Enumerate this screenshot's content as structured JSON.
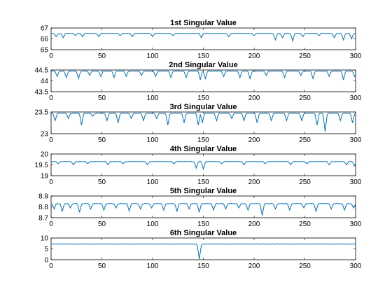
{
  "figure": {
    "background": "#ffffff",
    "line_color": "#0072bd"
  },
  "chart_data": [
    {
      "type": "line",
      "title": "1st Singular Value",
      "xlim": [
        0,
        300
      ],
      "ylim": [
        65,
        67
      ],
      "xticks": [
        0,
        50,
        100,
        150,
        200,
        250,
        300
      ],
      "yticks": [
        65,
        66,
        67
      ],
      "grid": false,
      "baseline": 66.5,
      "dips": [
        [
          5,
          66.2
        ],
        [
          12,
          66.1
        ],
        [
          24,
          66.3
        ],
        [
          31,
          66.2
        ],
        [
          47,
          66.2
        ],
        [
          68,
          66.3
        ],
        [
          80,
          66.2
        ],
        [
          100,
          66.2
        ],
        [
          120,
          66.3
        ],
        [
          148,
          66.1
        ],
        [
          175,
          66.2
        ],
        [
          200,
          66.3
        ],
        [
          221,
          65.9
        ],
        [
          228,
          66.1
        ],
        [
          238,
          65.8
        ],
        [
          248,
          66.2
        ],
        [
          264,
          66.3
        ],
        [
          279,
          66.1
        ],
        [
          288,
          65.9
        ],
        [
          296,
          66.0
        ]
      ]
    },
    {
      "type": "line",
      "title": "2nd Singular Value",
      "xlim": [
        0,
        300
      ],
      "ylim": [
        43.5,
        44.5
      ],
      "xticks": [
        0,
        50,
        100,
        150,
        200,
        250,
        300
      ],
      "yticks": [
        43.5,
        44,
        44.5
      ],
      "grid": false,
      "baseline": 44.45,
      "dips": [
        [
          6,
          44.2
        ],
        [
          15,
          44.15
        ],
        [
          27,
          44.1
        ],
        [
          38,
          44.25
        ],
        [
          49,
          44.2
        ],
        [
          62,
          44.15
        ],
        [
          74,
          44.2
        ],
        [
          89,
          44.25
        ],
        [
          103,
          44.2
        ],
        [
          118,
          44.15
        ],
        [
          133,
          44.15
        ],
        [
          147,
          44.05
        ],
        [
          152,
          44.1
        ],
        [
          170,
          44.2
        ],
        [
          186,
          44.15
        ],
        [
          196,
          44.1
        ],
        [
          212,
          44.25
        ],
        [
          230,
          44.15
        ],
        [
          246,
          44.25
        ],
        [
          258,
          44.1
        ],
        [
          274,
          44.2
        ],
        [
          288,
          44.05
        ],
        [
          299,
          44.2
        ]
      ]
    },
    {
      "type": "line",
      "title": "3rd Singular Value",
      "xlim": [
        0,
        300
      ],
      "ylim": [
        23,
        23.5
      ],
      "xticks": [
        0,
        50,
        100,
        150,
        200,
        250,
        300
      ],
      "yticks": [
        23,
        23.5
      ],
      "grid": false,
      "baseline": 23.47,
      "dips": [
        [
          4,
          23.3
        ],
        [
          17,
          23.35
        ],
        [
          30,
          23.2
        ],
        [
          41,
          23.4
        ],
        [
          55,
          23.3
        ],
        [
          66,
          23.25
        ],
        [
          79,
          23.35
        ],
        [
          91,
          23.3
        ],
        [
          104,
          23.35
        ],
        [
          115,
          23.2
        ],
        [
          131,
          23.25
        ],
        [
          145,
          23.2
        ],
        [
          149,
          23.25
        ],
        [
          163,
          23.3
        ],
        [
          178,
          23.35
        ],
        [
          190,
          23.3
        ],
        [
          203,
          23.25
        ],
        [
          217,
          23.3
        ],
        [
          232,
          23.3
        ],
        [
          247,
          23.3
        ],
        [
          262,
          23.2
        ],
        [
          270,
          23.05
        ],
        [
          285,
          23.3
        ],
        [
          297,
          23.25
        ]
      ]
    },
    {
      "type": "line",
      "title": "4th Singular Value",
      "xlim": [
        0,
        300
      ],
      "ylim": [
        19,
        20
      ],
      "xticks": [
        0,
        50,
        100,
        150,
        200,
        250,
        300
      ],
      "yticks": [
        19,
        19.5,
        20
      ],
      "grid": false,
      "baseline": 19.65,
      "dips": [
        [
          7,
          19.55
        ],
        [
          22,
          19.5
        ],
        [
          36,
          19.55
        ],
        [
          56,
          19.5
        ],
        [
          71,
          19.55
        ],
        [
          95,
          19.5
        ],
        [
          121,
          19.55
        ],
        [
          143,
          19.35
        ],
        [
          150,
          19.3
        ],
        [
          168,
          19.55
        ],
        [
          190,
          19.5
        ],
        [
          211,
          19.55
        ],
        [
          236,
          19.5
        ],
        [
          252,
          19.55
        ],
        [
          274,
          19.5
        ],
        [
          291,
          19.5
        ],
        [
          299,
          19.45
        ]
      ]
    },
    {
      "type": "line",
      "title": "5th Singular Value",
      "xlim": [
        0,
        300
      ],
      "ylim": [
        8.7,
        8.9
      ],
      "xticks": [
        0,
        50,
        100,
        150,
        200,
        250,
        300
      ],
      "yticks": [
        8.7,
        8.8,
        8.9
      ],
      "grid": false,
      "baseline": 8.83,
      "dips": [
        [
          3,
          8.78
        ],
        [
          11,
          8.76
        ],
        [
          19,
          8.79
        ],
        [
          28,
          8.75
        ],
        [
          39,
          8.78
        ],
        [
          52,
          8.77
        ],
        [
          64,
          8.79
        ],
        [
          77,
          8.76
        ],
        [
          88,
          8.78
        ],
        [
          99,
          8.79
        ],
        [
          111,
          8.77
        ],
        [
          124,
          8.76
        ],
        [
          136,
          8.78
        ],
        [
          146,
          8.75
        ],
        [
          160,
          8.77
        ],
        [
          172,
          8.78
        ],
        [
          185,
          8.79
        ],
        [
          194,
          8.77
        ],
        [
          208,
          8.72
        ],
        [
          221,
          8.78
        ],
        [
          235,
          8.77
        ],
        [
          249,
          8.79
        ],
        [
          261,
          8.76
        ],
        [
          276,
          8.78
        ],
        [
          289,
          8.77
        ],
        [
          298,
          8.79
        ]
      ]
    },
    {
      "type": "line",
      "title": "6th Singular Value",
      "xlim": [
        0,
        300
      ],
      "ylim": [
        0,
        10
      ],
      "xticks": [
        0,
        50,
        100,
        150,
        200,
        250,
        300
      ],
      "yticks": [
        0,
        5,
        10
      ],
      "grid": false,
      "baseline": 7.2,
      "dips": [
        [
          146,
          0.3
        ]
      ]
    }
  ]
}
